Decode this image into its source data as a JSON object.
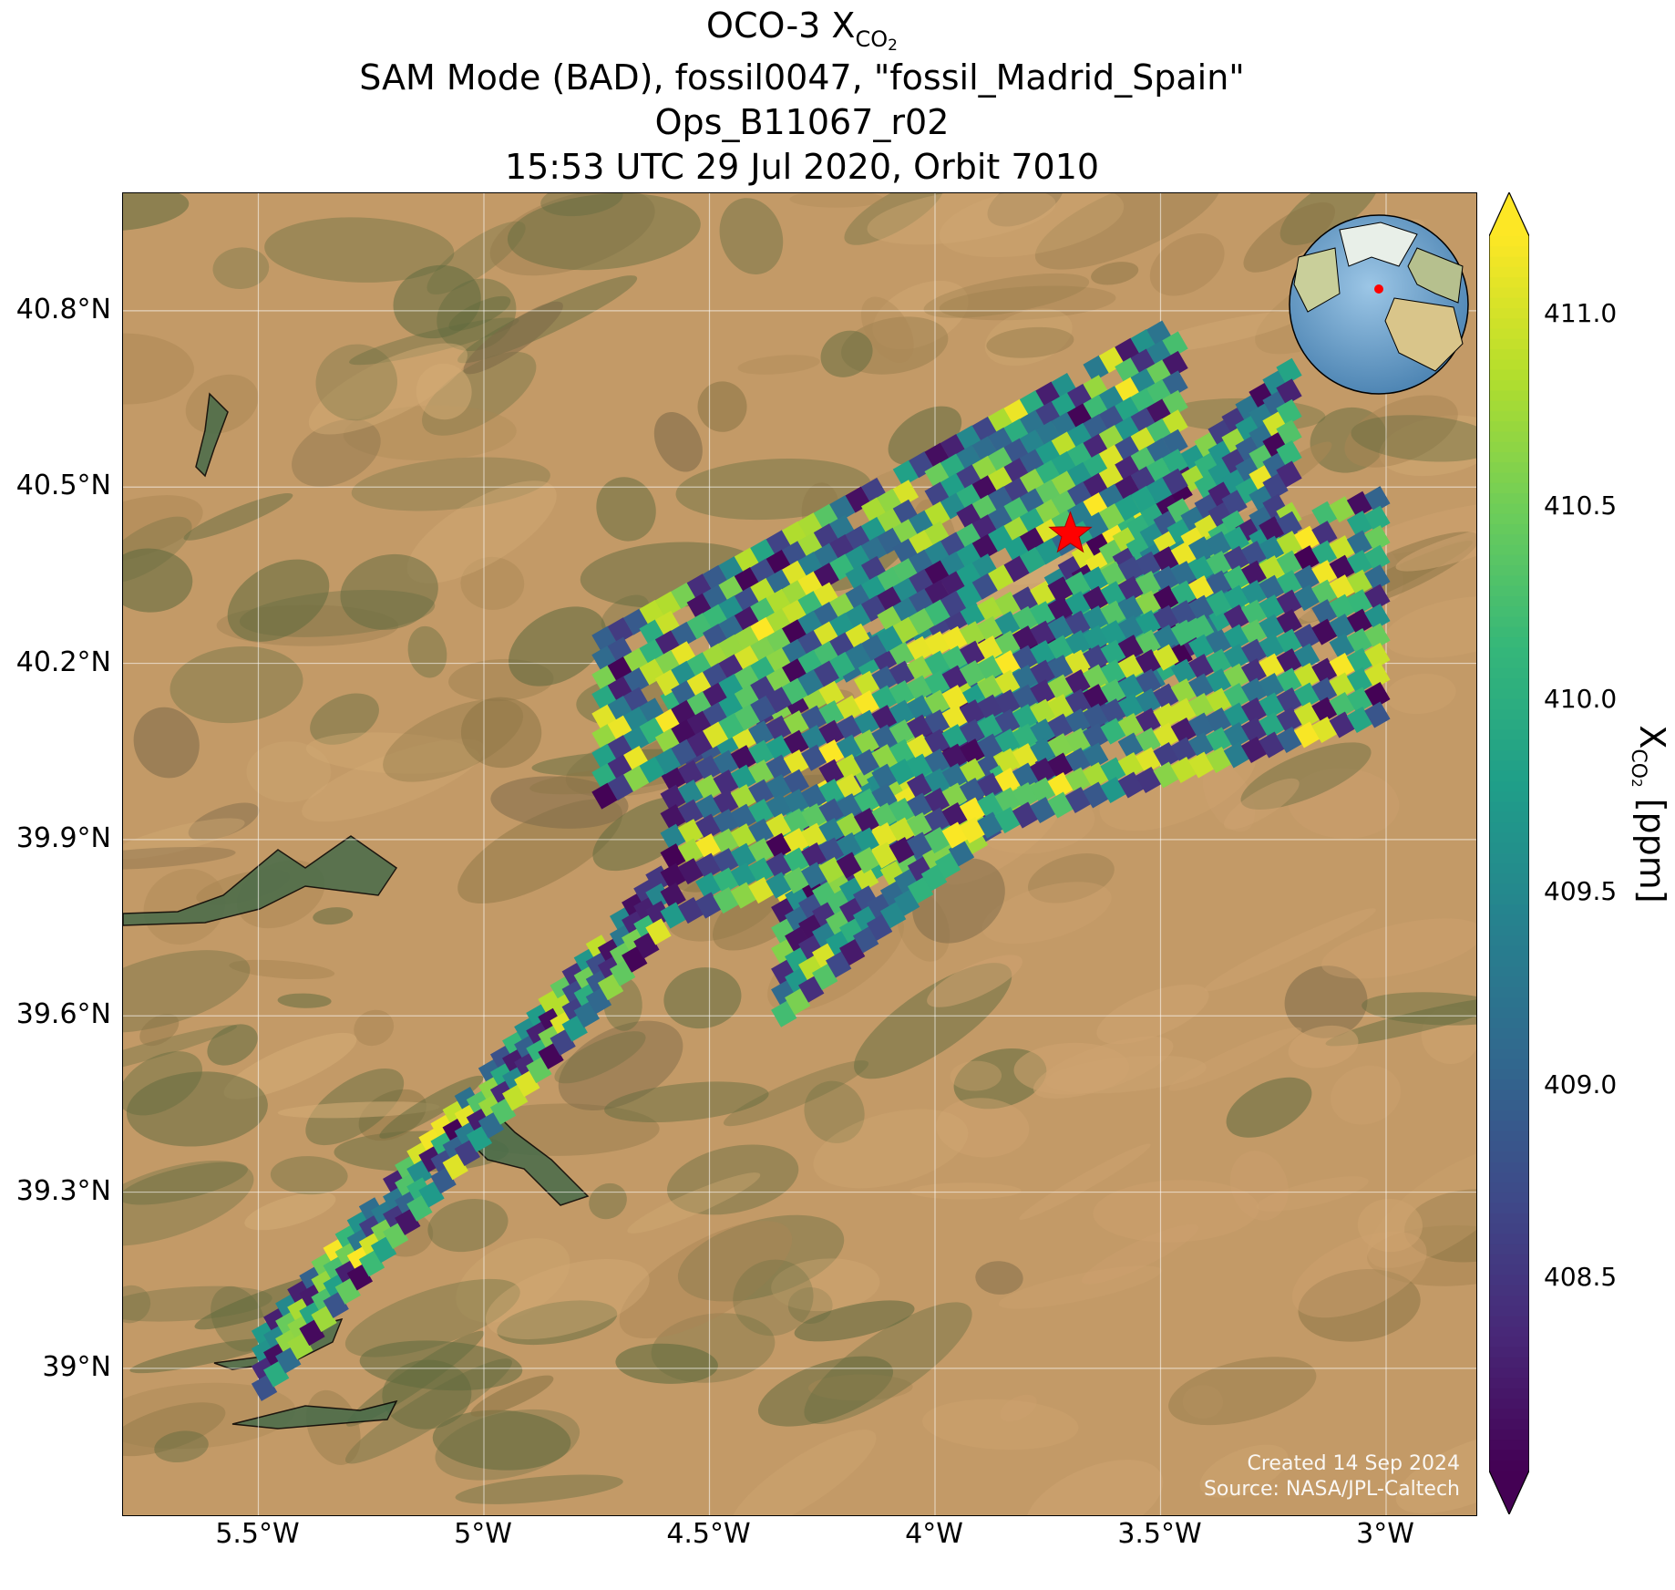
{
  "title": {
    "line1_prefix": "OCO-3 X",
    "line1_sub": "CO",
    "line1_subsub": "2",
    "line2": "SAM Mode (BAD), fossil0047, \"fossil_Madrid_Spain\"",
    "line3": "Ops_B11067_r02",
    "line4": "15:53 UTC 29 Jul 2020, Orbit 7010"
  },
  "map": {
    "lon_range": [
      -5.8,
      -2.8
    ],
    "lat_range": [
      38.75,
      41.0
    ],
    "lon_ticks": [
      "5.5°W",
      "5°W",
      "4.5°W",
      "4°W",
      "3.5°W",
      "3°W"
    ],
    "lat_ticks": [
      "40.8°N",
      "40.5°N",
      "40.2°N",
      "39.9°N",
      "39.6°N",
      "39.3°N",
      "39°N"
    ],
    "target_marker": {
      "lon": -3.7,
      "lat": 40.42,
      "symbol": "red-star"
    },
    "inset_globe": "globe-icon",
    "basemap_colors": {
      "arid": "#c39a67",
      "green": "#5f6a3e",
      "dark": "#7d6a48"
    },
    "credit_line1": "Created 14 Sep 2024",
    "credit_line2": "Source: NASA/JPL-Caltech"
  },
  "chart_data": {
    "type": "heatmap",
    "value_name": "XCO2",
    "units": "ppm",
    "vmin": 408.0,
    "vmax": 411.2,
    "swaths": [
      {
        "lon_start": -5.5,
        "lat_start": 39.0,
        "lon_end": -4.6,
        "lat_end": 39.8,
        "width_deg_lat": 0.12
      },
      {
        "lon_start": -4.35,
        "lat_start": 39.75,
        "lon_end": -3.2,
        "lat_end": 40.55,
        "width_deg_lat": 0.35
      },
      {
        "lon_start": -4.6,
        "lat_start": 39.95,
        "lon_end": -3.0,
        "lat_end": 40.3,
        "width_deg_lat": 0.4
      },
      {
        "lon_start": -4.75,
        "lat_start": 40.1,
        "lon_end": -3.45,
        "lat_end": 40.65,
        "width_deg_lat": 0.3
      }
    ],
    "colormap": "viridis",
    "colorbar_label_prefix": "X",
    "colorbar_label_sub": "CO",
    "colorbar_label_subsub": "2",
    "colorbar_label_suffix": " [ppm]",
    "colorbar_ticks": [
      "411.0",
      "410.5",
      "410.0",
      "409.5",
      "409.0",
      "408.5"
    ],
    "colorbar_tick_values": [
      411.0,
      410.5,
      410.0,
      409.5,
      409.0,
      408.5
    ],
    "colorbar_extend": "both"
  }
}
